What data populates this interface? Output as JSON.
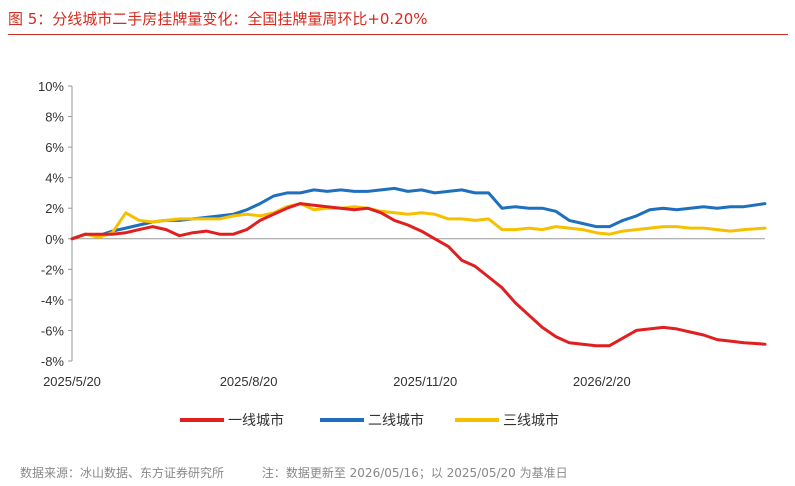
{
  "title": "图 5：分线城市二手房挂牌量变化：全国挂牌量周环比+0.20%",
  "footer": {
    "source": "数据来源：冰山数据、东方证券研究所",
    "note": "注：数据更新至 2026/05/16；以 2025/05/20 为基准日"
  },
  "colors": {
    "tier1": "#e02020",
    "tier2": "#1f6fbf",
    "tier3": "#f5c000",
    "accent": "#d42a1f"
  },
  "chart_data": {
    "type": "line",
    "x_unit": "date",
    "x_ticks": [
      "2025/5/20",
      "2025/8/20",
      "2025/11/20",
      "2026/2/20"
    ],
    "xlim": [
      "2025-05-20",
      "2026-05-16"
    ],
    "ylim": [
      -8,
      10
    ],
    "y_ticks": [
      "10%",
      "8%",
      "6%",
      "4%",
      "2%",
      "0%",
      "-2%",
      "-4%",
      "-6%",
      "-8%"
    ],
    "y_tick_values": [
      10,
      8,
      6,
      4,
      2,
      0,
      -2,
      -4,
      -6,
      -8
    ],
    "grid": false,
    "legend_position": "bottom",
    "series": [
      {
        "name": "一线城市",
        "color": "#e02020",
        "points": [
          [
            "2025-05-20",
            0.0
          ],
          [
            "2025-05-27",
            0.3
          ],
          [
            "2025-06-03",
            0.3
          ],
          [
            "2025-06-10",
            0.3
          ],
          [
            "2025-06-17",
            0.4
          ],
          [
            "2025-06-24",
            0.6
          ],
          [
            "2025-07-01",
            0.8
          ],
          [
            "2025-07-08",
            0.6
          ],
          [
            "2025-07-15",
            0.2
          ],
          [
            "2025-07-22",
            0.4
          ],
          [
            "2025-07-29",
            0.5
          ],
          [
            "2025-08-05",
            0.3
          ],
          [
            "2025-08-12",
            0.3
          ],
          [
            "2025-08-19",
            0.6
          ],
          [
            "2025-08-26",
            1.2
          ],
          [
            "2025-09-02",
            1.6
          ],
          [
            "2025-09-09",
            2.0
          ],
          [
            "2025-09-16",
            2.3
          ],
          [
            "2025-09-23",
            2.2
          ],
          [
            "2025-09-30",
            2.1
          ],
          [
            "2025-10-07",
            2.0
          ],
          [
            "2025-10-14",
            1.9
          ],
          [
            "2025-10-21",
            2.0
          ],
          [
            "2025-10-28",
            1.7
          ],
          [
            "2025-11-04",
            1.2
          ],
          [
            "2025-11-11",
            0.9
          ],
          [
            "2025-11-18",
            0.5
          ],
          [
            "2025-11-25",
            0.0
          ],
          [
            "2025-12-02",
            -0.5
          ],
          [
            "2025-12-09",
            -1.4
          ],
          [
            "2025-12-16",
            -1.8
          ],
          [
            "2025-12-23",
            -2.5
          ],
          [
            "2025-12-30",
            -3.2
          ],
          [
            "2026-01-06",
            -4.2
          ],
          [
            "2026-01-13",
            -5.0
          ],
          [
            "2026-01-20",
            -5.8
          ],
          [
            "2026-01-27",
            -6.4
          ],
          [
            "2026-02-03",
            -6.8
          ],
          [
            "2026-02-10",
            -6.9
          ],
          [
            "2026-02-17",
            -7.0
          ],
          [
            "2026-02-24",
            -7.0
          ],
          [
            "2026-03-03",
            -6.5
          ],
          [
            "2026-03-10",
            -6.0
          ],
          [
            "2026-03-17",
            -5.9
          ],
          [
            "2026-03-24",
            -5.8
          ],
          [
            "2026-03-31",
            -5.9
          ],
          [
            "2026-04-07",
            -6.1
          ],
          [
            "2026-04-14",
            -6.3
          ],
          [
            "2026-04-21",
            -6.6
          ],
          [
            "2026-04-28",
            -6.7
          ],
          [
            "2026-05-05",
            -6.8
          ],
          [
            "2026-05-16",
            -6.9
          ]
        ]
      },
      {
        "name": "二线城市",
        "color": "#1f6fbf",
        "points": [
          [
            "2025-05-20",
            0.0
          ],
          [
            "2025-05-27",
            0.3
          ],
          [
            "2025-06-03",
            0.2
          ],
          [
            "2025-06-10",
            0.5
          ],
          [
            "2025-06-17",
            0.7
          ],
          [
            "2025-06-24",
            0.9
          ],
          [
            "2025-07-01",
            1.1
          ],
          [
            "2025-07-08",
            1.2
          ],
          [
            "2025-07-15",
            1.2
          ],
          [
            "2025-07-22",
            1.3
          ],
          [
            "2025-07-29",
            1.4
          ],
          [
            "2025-08-05",
            1.5
          ],
          [
            "2025-08-12",
            1.6
          ],
          [
            "2025-08-19",
            1.9
          ],
          [
            "2025-08-26",
            2.3
          ],
          [
            "2025-09-02",
            2.8
          ],
          [
            "2025-09-09",
            3.0
          ],
          [
            "2025-09-16",
            3.0
          ],
          [
            "2025-09-23",
            3.2
          ],
          [
            "2025-09-30",
            3.1
          ],
          [
            "2025-10-07",
            3.2
          ],
          [
            "2025-10-14",
            3.1
          ],
          [
            "2025-10-21",
            3.1
          ],
          [
            "2025-10-28",
            3.2
          ],
          [
            "2025-11-04",
            3.3
          ],
          [
            "2025-11-11",
            3.1
          ],
          [
            "2025-11-18",
            3.2
          ],
          [
            "2025-11-25",
            3.0
          ],
          [
            "2025-12-02",
            3.1
          ],
          [
            "2025-12-09",
            3.2
          ],
          [
            "2025-12-16",
            3.0
          ],
          [
            "2025-12-23",
            3.0
          ],
          [
            "2025-12-30",
            2.0
          ],
          [
            "2026-01-06",
            2.1
          ],
          [
            "2026-01-13",
            2.0
          ],
          [
            "2026-01-20",
            2.0
          ],
          [
            "2026-01-27",
            1.8
          ],
          [
            "2026-02-03",
            1.2
          ],
          [
            "2026-02-10",
            1.0
          ],
          [
            "2026-02-17",
            0.8
          ],
          [
            "2026-02-24",
            0.8
          ],
          [
            "2026-03-03",
            1.2
          ],
          [
            "2026-03-10",
            1.5
          ],
          [
            "2026-03-17",
            1.9
          ],
          [
            "2026-03-24",
            2.0
          ],
          [
            "2026-03-31",
            1.9
          ],
          [
            "2026-04-07",
            2.0
          ],
          [
            "2026-04-14",
            2.1
          ],
          [
            "2026-04-21",
            2.0
          ],
          [
            "2026-04-28",
            2.1
          ],
          [
            "2026-05-05",
            2.1
          ],
          [
            "2026-05-16",
            2.3
          ]
        ]
      },
      {
        "name": "三线城市",
        "color": "#f5c000",
        "points": [
          [
            "2025-05-20",
            0.0
          ],
          [
            "2025-05-27",
            0.3
          ],
          [
            "2025-06-03",
            0.1
          ],
          [
            "2025-06-10",
            0.4
          ],
          [
            "2025-06-17",
            1.7
          ],
          [
            "2025-06-24",
            1.2
          ],
          [
            "2025-07-01",
            1.1
          ],
          [
            "2025-07-08",
            1.2
          ],
          [
            "2025-07-15",
            1.3
          ],
          [
            "2025-07-22",
            1.3
          ],
          [
            "2025-07-29",
            1.3
          ],
          [
            "2025-08-05",
            1.3
          ],
          [
            "2025-08-12",
            1.5
          ],
          [
            "2025-08-19",
            1.6
          ],
          [
            "2025-08-26",
            1.5
          ],
          [
            "2025-09-02",
            1.7
          ],
          [
            "2025-09-09",
            2.1
          ],
          [
            "2025-09-16",
            2.3
          ],
          [
            "2025-09-23",
            1.9
          ],
          [
            "2025-09-30",
            2.0
          ],
          [
            "2025-10-07",
            2.0
          ],
          [
            "2025-10-14",
            2.1
          ],
          [
            "2025-10-21",
            2.0
          ],
          [
            "2025-10-28",
            1.8
          ],
          [
            "2025-11-04",
            1.7
          ],
          [
            "2025-11-11",
            1.6
          ],
          [
            "2025-11-18",
            1.7
          ],
          [
            "2025-11-25",
            1.6
          ],
          [
            "2025-12-02",
            1.3
          ],
          [
            "2025-12-09",
            1.3
          ],
          [
            "2025-12-16",
            1.2
          ],
          [
            "2025-12-23",
            1.3
          ],
          [
            "2025-12-30",
            0.6
          ],
          [
            "2026-01-06",
            0.6
          ],
          [
            "2026-01-13",
            0.7
          ],
          [
            "2026-01-20",
            0.6
          ],
          [
            "2026-01-27",
            0.8
          ],
          [
            "2026-02-03",
            0.7
          ],
          [
            "2026-02-10",
            0.6
          ],
          [
            "2026-02-17",
            0.4
          ],
          [
            "2026-02-24",
            0.3
          ],
          [
            "2026-03-03",
            0.5
          ],
          [
            "2026-03-10",
            0.6
          ],
          [
            "2026-03-17",
            0.7
          ],
          [
            "2026-03-24",
            0.8
          ],
          [
            "2026-03-31",
            0.8
          ],
          [
            "2026-04-07",
            0.7
          ],
          [
            "2026-04-14",
            0.7
          ],
          [
            "2026-04-21",
            0.6
          ],
          [
            "2026-04-28",
            0.5
          ],
          [
            "2026-05-05",
            0.6
          ],
          [
            "2026-05-16",
            0.7
          ]
        ]
      }
    ]
  }
}
